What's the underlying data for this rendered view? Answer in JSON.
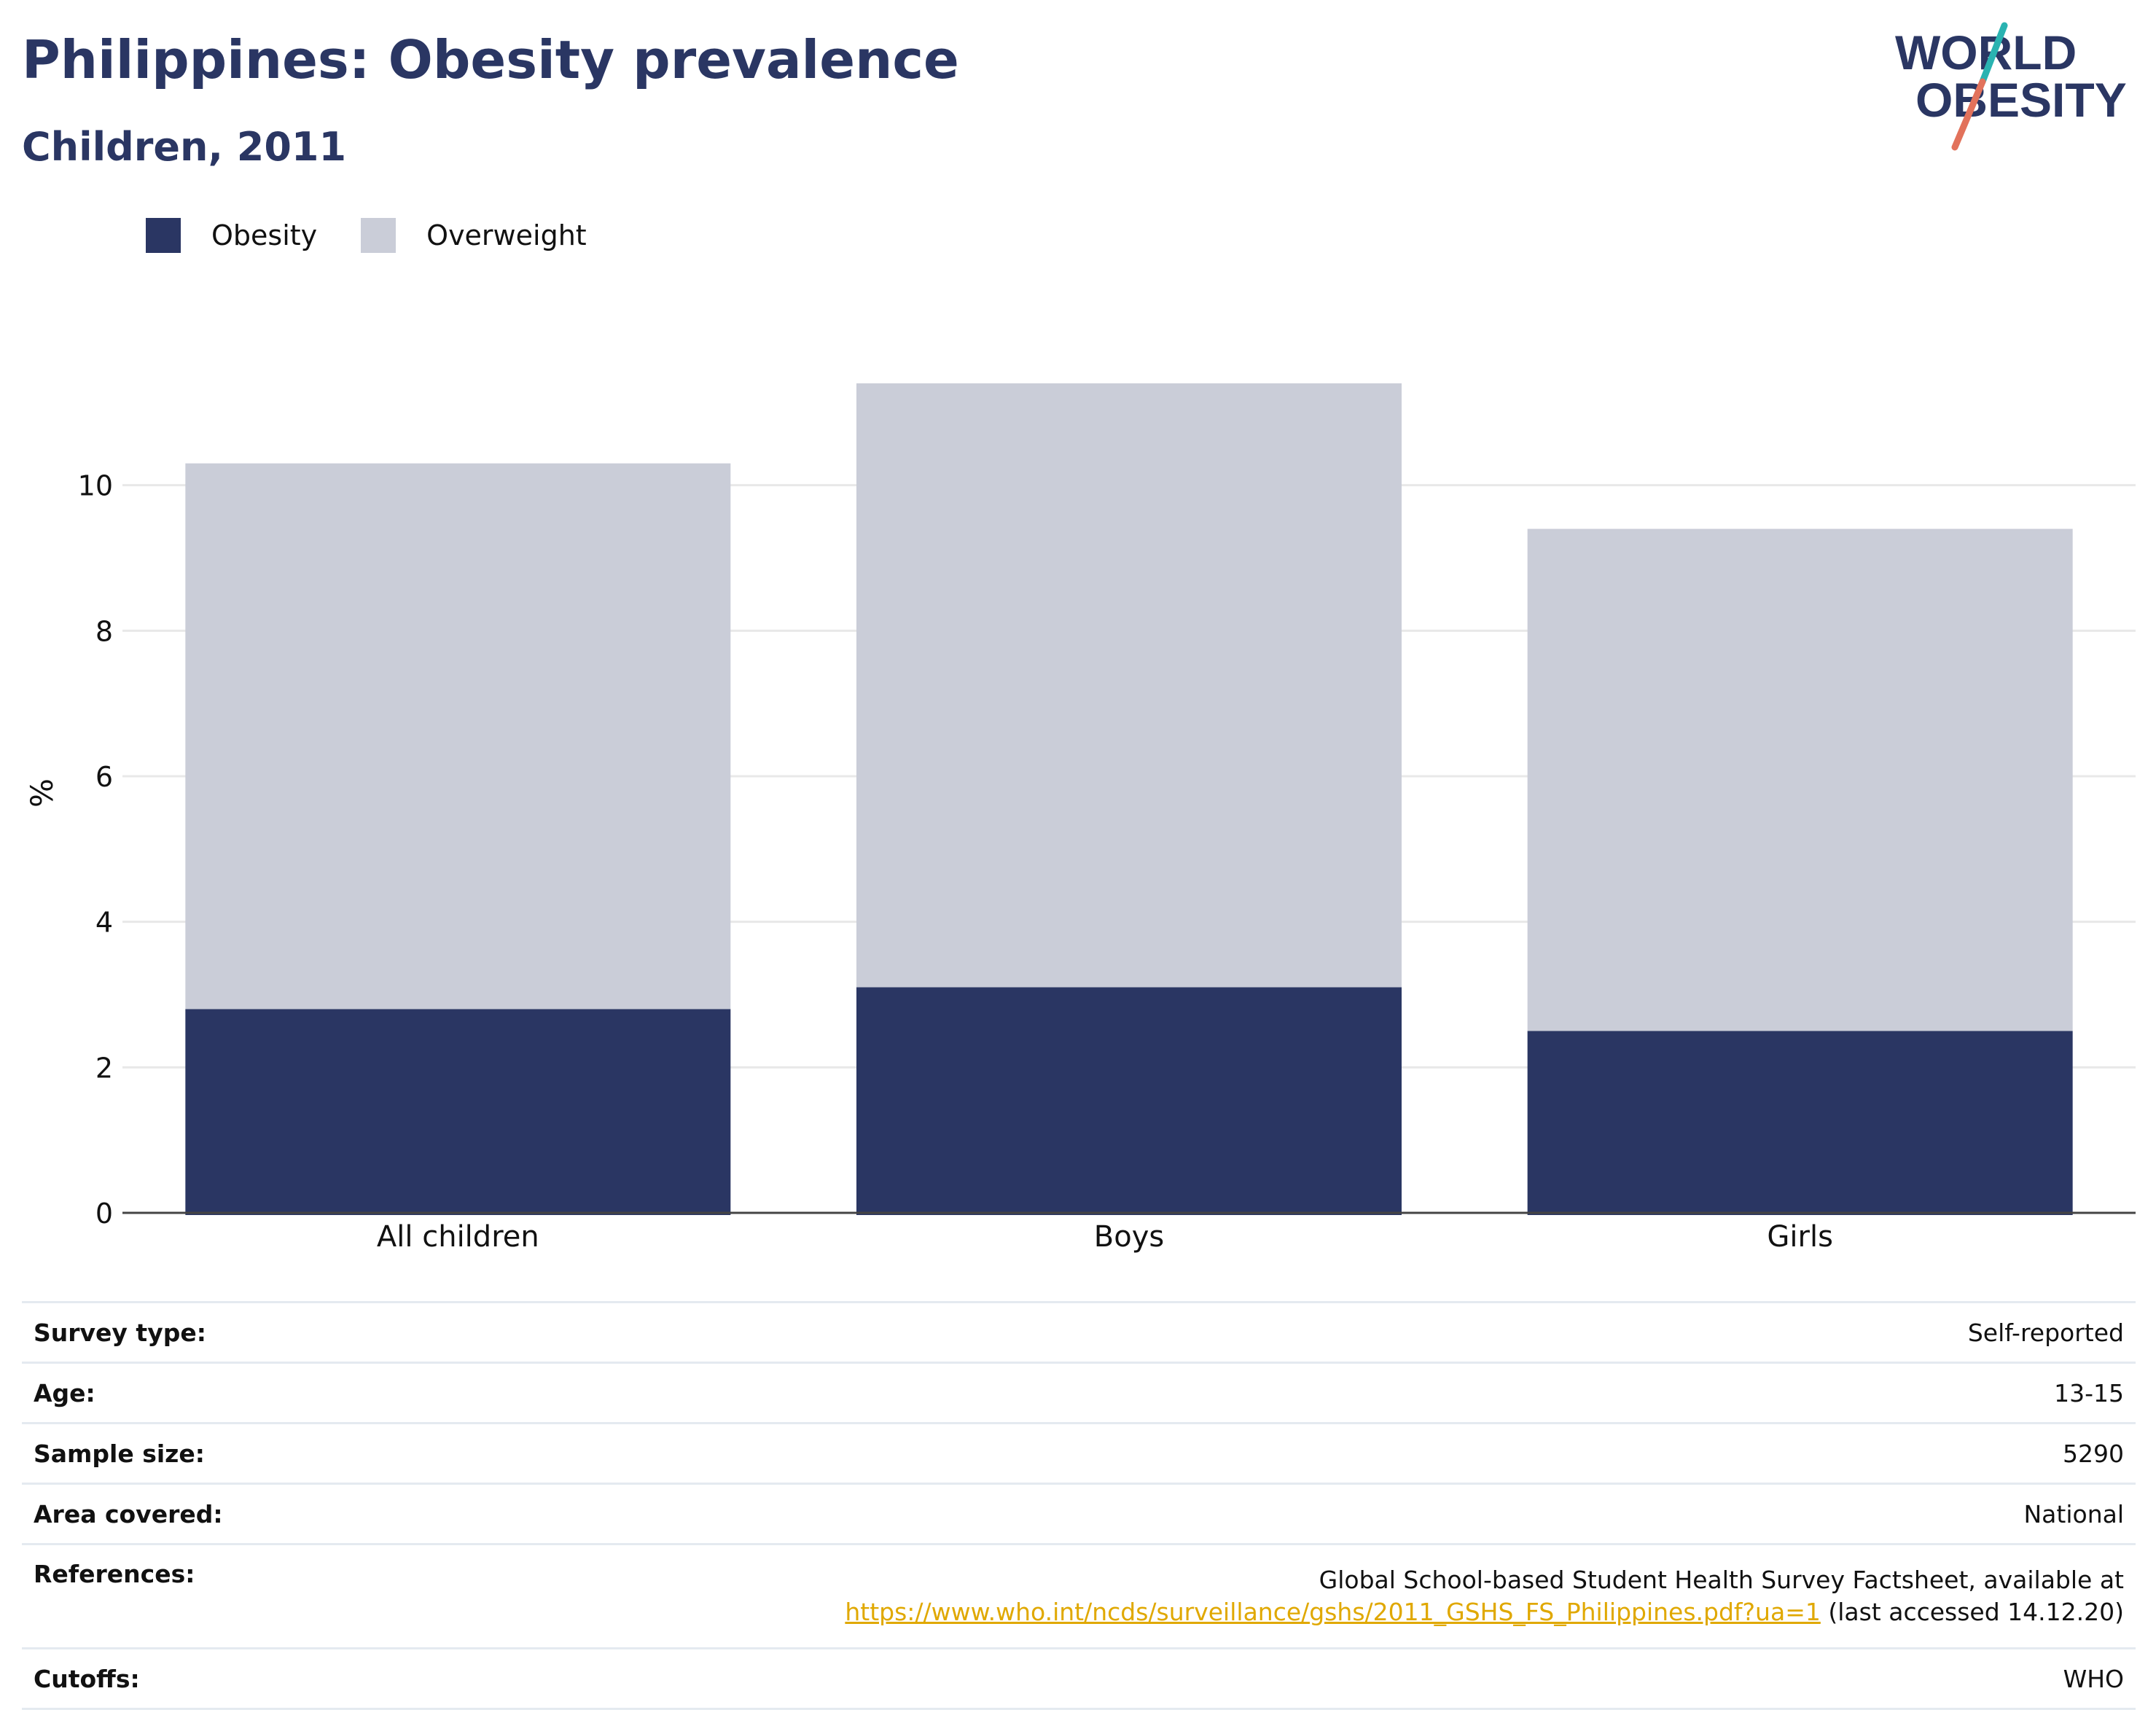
{
  "header": {
    "title": "Philippines: Obesity prevalence",
    "subtitle": "Children, 2011"
  },
  "logo": {
    "line1": "WORLD",
    "line2": "OBESITY",
    "colors": {
      "text": "#2a3663",
      "slash_teal": "#2ab3b1",
      "slash_red": "#e2725b"
    }
  },
  "colors": {
    "obesity": "#2a3663",
    "overweight": "#cacdd8",
    "gridline": "#e8e8e8",
    "axis": "#444444",
    "link": "#e0a800"
  },
  "chart_data": {
    "type": "bar",
    "stacked": true,
    "categories": [
      "All children",
      "Boys",
      "Girls"
    ],
    "series": [
      {
        "name": "Obesity",
        "values": [
          2.8,
          3.1,
          2.5
        ]
      },
      {
        "name": "Overweight",
        "values": [
          7.5,
          8.3,
          6.9
        ]
      }
    ],
    "ylabel": "%",
    "xlabel": "",
    "ylim": [
      0,
      12
    ],
    "yticks": [
      0,
      2,
      4,
      6,
      8,
      10
    ],
    "grid": true,
    "legend_position": "top-left"
  },
  "info": [
    {
      "key": "Survey type:",
      "value": "Self-reported"
    },
    {
      "key": "Age:",
      "value": "13-15"
    },
    {
      "key": "Sample size:",
      "value": "5290"
    },
    {
      "key": "Area covered:",
      "value": "National"
    },
    {
      "key": "References:",
      "value_line1": "Global School-based Student Health Survey Factsheet, available at",
      "link": "https://www.who.int/ncds/surveillance/gshs/2011_GSHS_FS_Philippines.pdf?ua=1",
      "value_suffix": "(last accessed 14.12.20)"
    },
    {
      "key": "Cutoffs:",
      "value": "WHO"
    }
  ]
}
